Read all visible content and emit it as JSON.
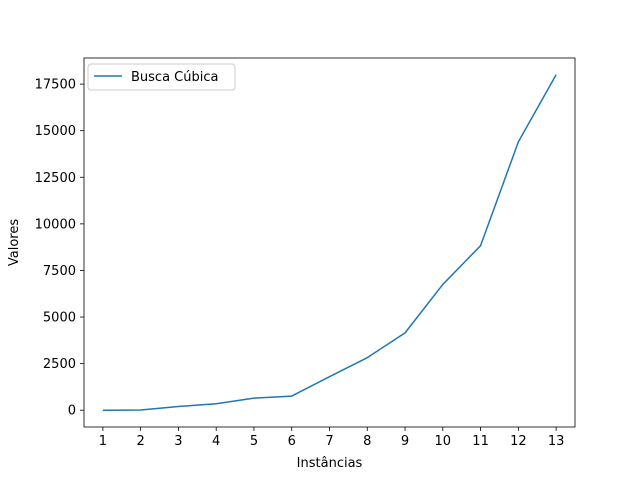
{
  "chart_data": {
    "type": "line",
    "title": "",
    "xlabel": "Instâncias",
    "ylabel": "Valores",
    "x": [
      1,
      2,
      3,
      4,
      5,
      6,
      7,
      8,
      9,
      10,
      11,
      12,
      13
    ],
    "series": [
      {
        "name": "Busca Cúbica",
        "color": "#1f77b4",
        "values": [
          2,
          10,
          200,
          350,
          650,
          760,
          1800,
          2820,
          4150,
          6750,
          8830,
          14400,
          18000
        ]
      }
    ],
    "xlim": [
      0.5,
      13.5
    ],
    "ylim": [
      -900,
      18900
    ],
    "xticks": [
      1,
      2,
      3,
      4,
      5,
      6,
      7,
      8,
      9,
      10,
      11,
      12,
      13
    ],
    "yticks": [
      0,
      2500,
      5000,
      7500,
      10000,
      12500,
      15000,
      17500
    ],
    "grid": false,
    "legend_position": "top-left"
  }
}
